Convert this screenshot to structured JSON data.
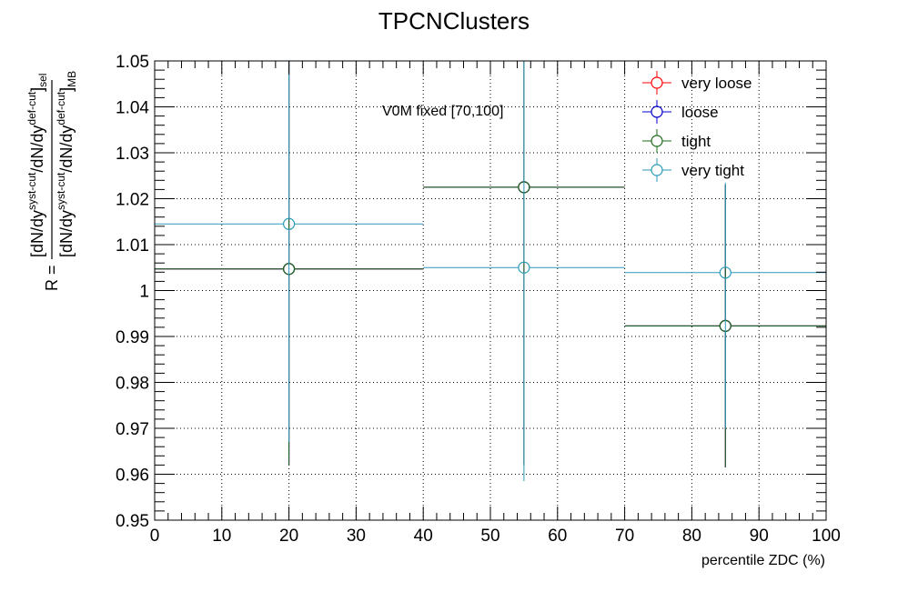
{
  "chart_data": {
    "type": "scatter",
    "title": "TPCNClusters",
    "xlabel": "percentile ZDC (%)",
    "ylabel": {
      "prefix": "R =",
      "numerator": "[dN/dy",
      "numerator_sup1": "syst-cut",
      "numerator_mid": "/dN/dy",
      "numerator_sup2": "def-cut",
      "numerator_close": "]",
      "numerator_sub": "sel",
      "denominator": "[dN/dy",
      "denominator_sup1": "syst-cut",
      "denominator_mid": "/dN/dy",
      "denominator_sup2": "def-cut",
      "denominator_close": "]",
      "denominator_sub": "MB"
    },
    "annotation": "V0M fixed [70,100]",
    "xlim": [
      0,
      100
    ],
    "ylim": [
      0.95,
      1.05
    ],
    "xticks": [
      "0",
      "10",
      "20",
      "30",
      "40",
      "50",
      "60",
      "70",
      "80",
      "90",
      "100"
    ],
    "yticks": [
      "0.95",
      "0.96",
      "0.97",
      "0.98",
      "0.99",
      "1",
      "1.01",
      "1.02",
      "1.03",
      "1.04",
      "1.05"
    ],
    "grid": true,
    "legend_position": "top-right",
    "series": [
      {
        "name": "very loose",
        "color": "#ff0000",
        "points": [
          {
            "x": 20,
            "xlow": 0,
            "xhigh": 40,
            "y": 1.0047,
            "ylow": 0.962,
            "yhigh": 1.05
          },
          {
            "x": 55,
            "xlow": 40,
            "xhigh": 70,
            "y": 1.0225,
            "ylow": 0.962,
            "yhigh": 1.05
          },
          {
            "x": 85,
            "xlow": 70,
            "xhigh": 100,
            "y": 0.9923,
            "ylow": 0.9615,
            "yhigh": 1.023
          }
        ]
      },
      {
        "name": "loose",
        "color": "#0000cc",
        "points": [
          {
            "x": 20,
            "xlow": 0,
            "xhigh": 40,
            "y": 1.0047,
            "ylow": 0.962,
            "yhigh": 1.05
          },
          {
            "x": 55,
            "xlow": 40,
            "xhigh": 70,
            "y": 1.0225,
            "ylow": 0.962,
            "yhigh": 1.05
          },
          {
            "x": 85,
            "xlow": 70,
            "xhigh": 100,
            "y": 0.9923,
            "ylow": 0.9615,
            "yhigh": 1.023
          }
        ]
      },
      {
        "name": "tight",
        "color": "#1a6b1a",
        "points": [
          {
            "x": 20,
            "xlow": 0,
            "xhigh": 40,
            "y": 1.0047,
            "ylow": 0.962,
            "yhigh": 1.05
          },
          {
            "x": 55,
            "xlow": 40,
            "xhigh": 70,
            "y": 1.0225,
            "ylow": 0.962,
            "yhigh": 1.05
          },
          {
            "x": 85,
            "xlow": 70,
            "xhigh": 100,
            "y": 0.9923,
            "ylow": 0.9615,
            "yhigh": 1.023
          }
        ]
      },
      {
        "name": "very tight",
        "color": "#2b9ab8",
        "points": [
          {
            "x": 20,
            "xlow": 0,
            "xhigh": 40,
            "y": 1.0145,
            "ylow": 0.967,
            "yhigh": 1.05
          },
          {
            "x": 55,
            "xlow": 40,
            "xhigh": 70,
            "y": 1.005,
            "ylow": 0.9585,
            "yhigh": 1.05
          },
          {
            "x": 85,
            "xlow": 70,
            "xhigh": 100,
            "y": 1.0039,
            "ylow": 0.97,
            "yhigh": 1.0235
          }
        ]
      }
    ]
  }
}
